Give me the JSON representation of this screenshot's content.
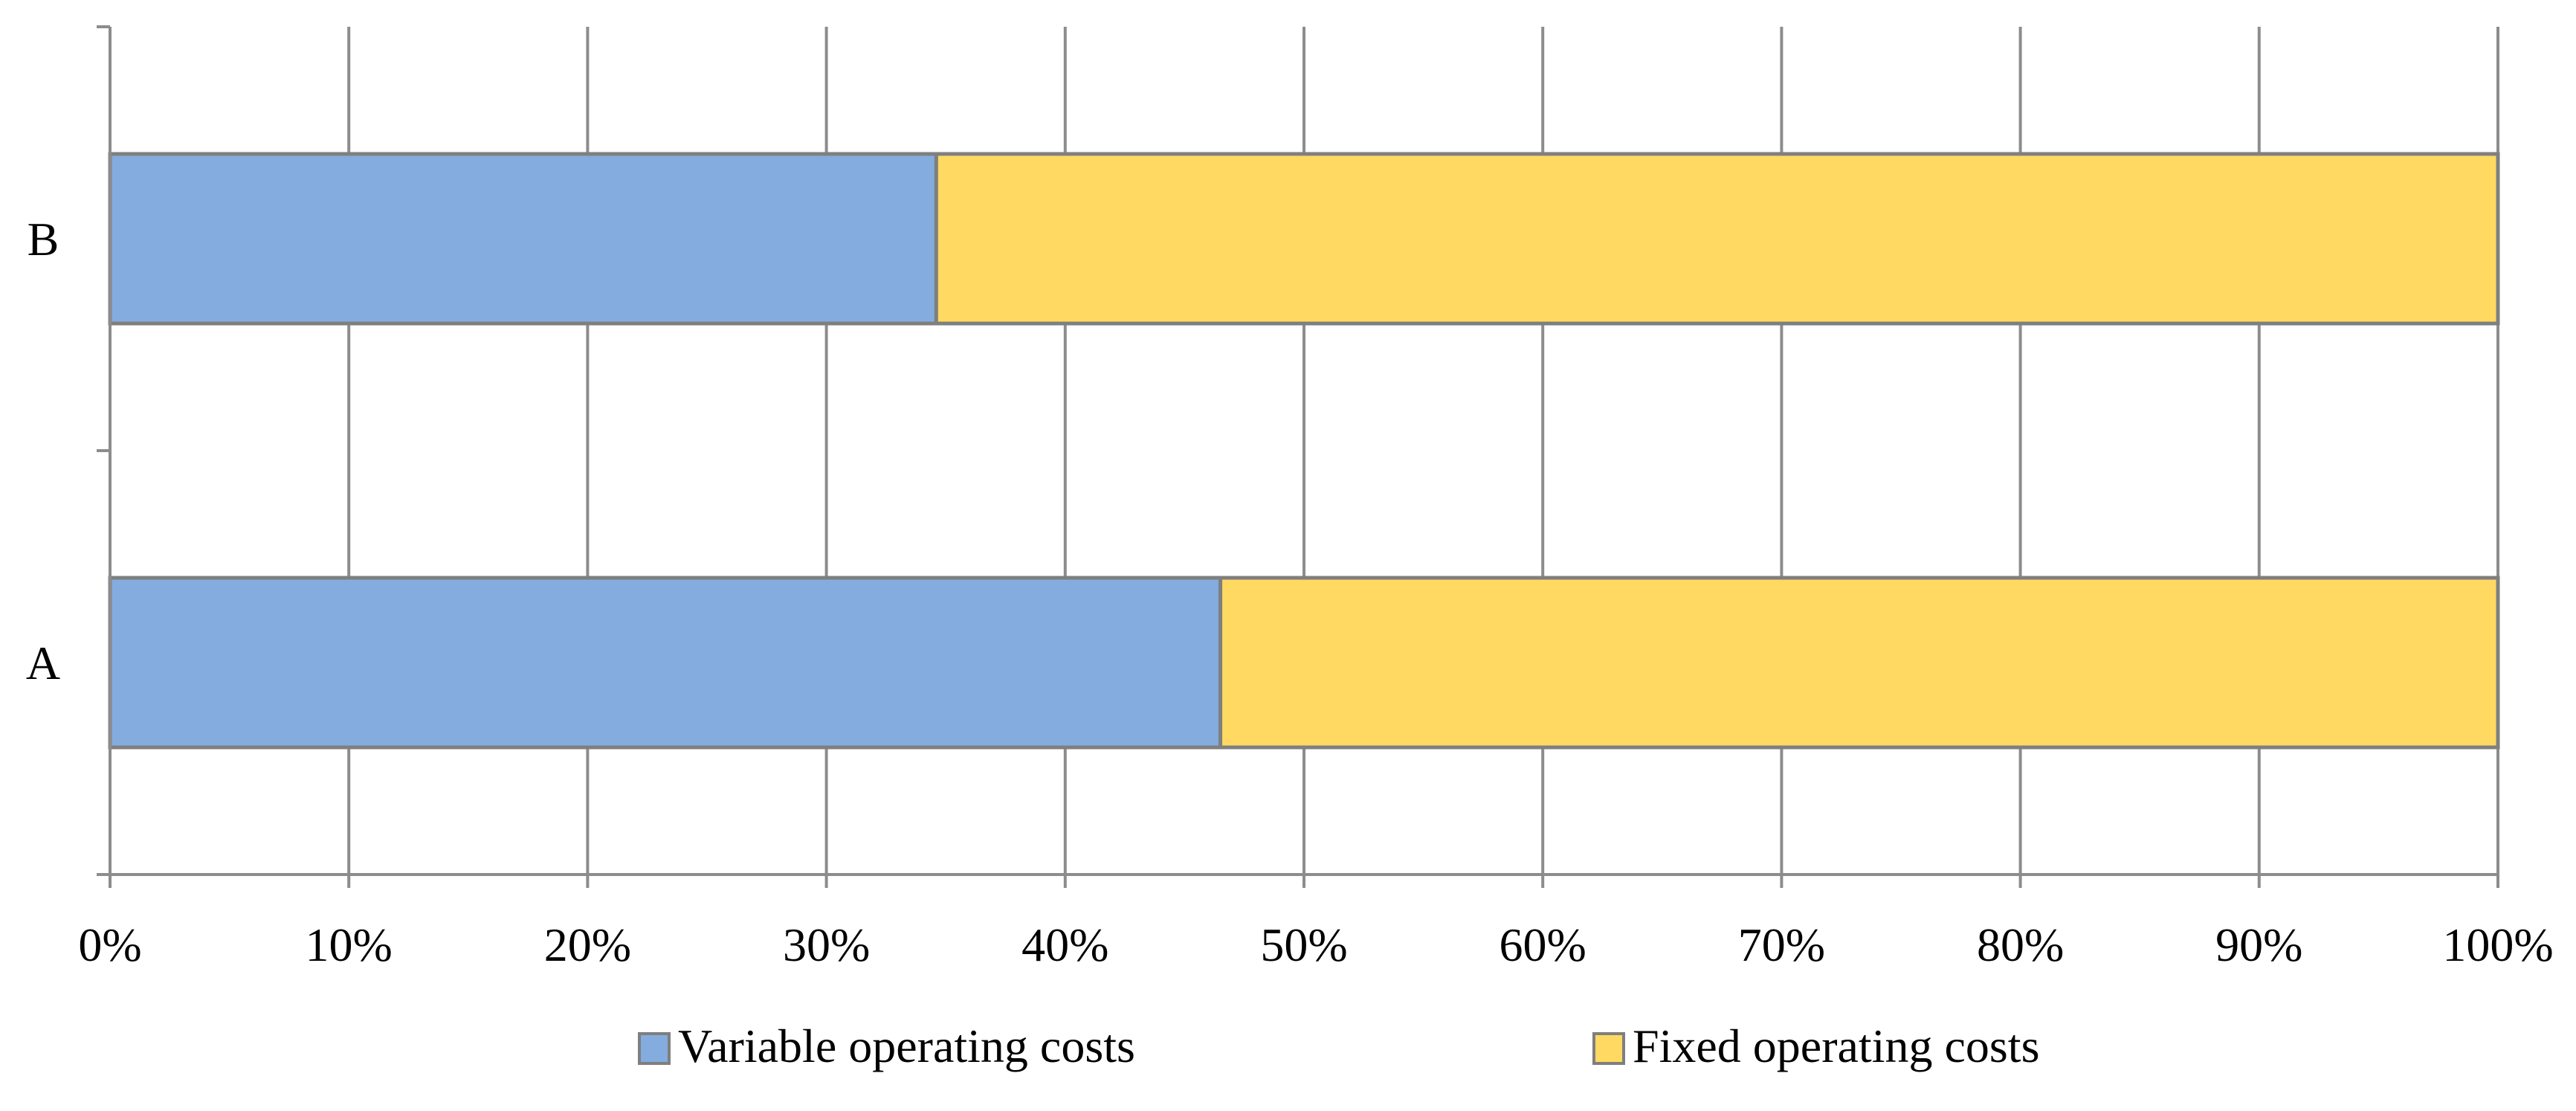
{
  "chart_data": {
    "type": "bar",
    "orientation": "horizontal",
    "stacked": "percent",
    "title": "",
    "xlabel": "",
    "ylabel": "",
    "categories": [
      "A",
      "B"
    ],
    "series": [
      {
        "name": "Variable operating costs",
        "values": [
          46.5,
          34.6
        ],
        "color": "#84ACDE"
      },
      {
        "name": "Fixed operating costs",
        "values": [
          53.5,
          65.4
        ],
        "color": "#FFD961"
      }
    ],
    "xlim": [
      0,
      100
    ],
    "x_ticks": [
      0,
      10,
      20,
      30,
      40,
      50,
      60,
      70,
      80,
      90,
      100
    ],
    "x_tick_labels": [
      "0%",
      "10%",
      "20%",
      "30%",
      "40%",
      "50%",
      "60%",
      "70%",
      "80%",
      "90%",
      "100%"
    ],
    "grid": true,
    "legend_position": "bottom",
    "colors": {
      "grid": "#8C8C8C",
      "bar_outline": "#7F7F7F",
      "axis": "#8C8C8C"
    }
  }
}
